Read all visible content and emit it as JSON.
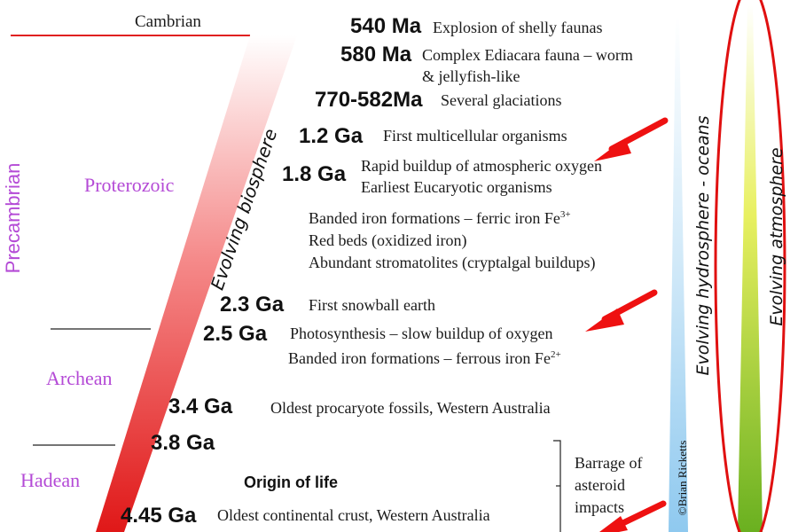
{
  "eons": {
    "cambrian": "Cambrian",
    "precambrian": "Precambrian",
    "proterozoic": "Proterozoic",
    "archean": "Archean",
    "hadean": "Hadean"
  },
  "events": [
    {
      "age": "540 Ma",
      "text": "Explosion of shelly faunas"
    },
    {
      "age": "580 Ma",
      "text": "Complex Ediacara fauna – worm",
      "text2": "& jellyfish-like"
    },
    {
      "age": "770-582Ma",
      "text": "Several glaciations"
    },
    {
      "age": "1.2 Ga",
      "text": "First multicellular organisms"
    },
    {
      "age": "1.8 Ga",
      "text": "Rapid buildup of atmospheric oxygen",
      "text2": "Earliest Eucaryotic organisms"
    },
    {
      "age": "2.3 Ga",
      "text": "First snowball earth"
    },
    {
      "age": "2.5 Ga",
      "text": "Photosynthesis – slow buildup of oxygen"
    },
    {
      "age": "3.4 Ga",
      "text": "Oldest procaryote fossils, Western Australia"
    },
    {
      "age": "3.8 Ga",
      "text": ""
    },
    {
      "age": "4.45 Ga",
      "text": "Oldest continental crust, Western Australia"
    }
  ],
  "notes": {
    "bif_ferric": "Banded iron formations –  ferric iron Fe",
    "bif_ferric_sup": "3+",
    "red_beds": "Red beds (oxidized iron)",
    "stromatolites": "Abundant stromatolites (cryptalgal buildups)",
    "bif_ferrous": "Banded iron formations –  ferrous iron Fe",
    "bif_ferrous_sup": "2+",
    "origin_of_life": "Origin of life",
    "barrage_1": "Barrage of",
    "barrage_2": "asteroid",
    "barrage_3": "impacts"
  },
  "wedges": {
    "biosphere": "Evolving biosphere",
    "hydrosphere": "Evolving hydrosphere - oceans",
    "atmosphere": "Evolving atmosphere"
  },
  "credit": "©Brian Ricketts",
  "colors": {
    "eon_label": "#b44ad6",
    "boundary_red": "#e02020",
    "biosphere_red": "#ee2222",
    "hydrosphere_blue": "#9fd2f2",
    "atmosphere_green": "#7ab81e",
    "arrow_red": "#ee1111"
  }
}
